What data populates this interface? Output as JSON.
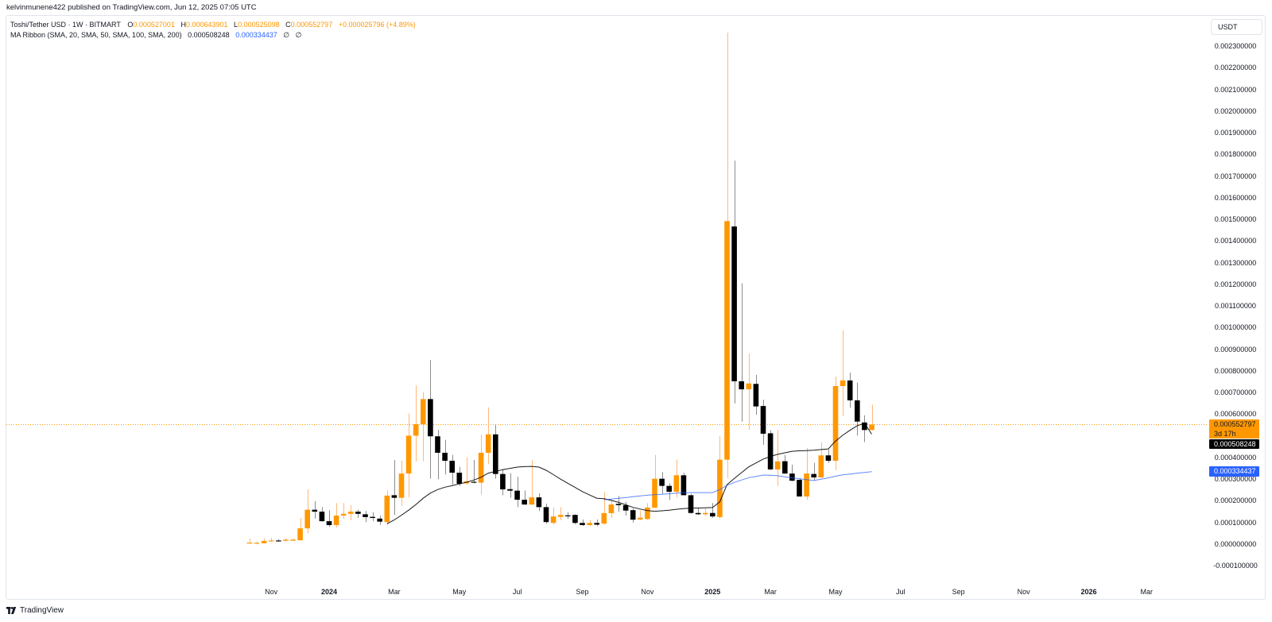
{
  "header": {
    "author": "kelvinmunene422",
    "published_text": " published on TradingView.com, Jun 12, 2025 07:05 UTC"
  },
  "legend": {
    "symbol": "Toshi/Tether USD · 1W · BITMART",
    "ohlc": [
      {
        "label": "O",
        "value": "0.000527001"
      },
      {
        "label": "H",
        "value": "0.000643901"
      },
      {
        "label": "L",
        "value": "0.000525098"
      },
      {
        "label": "C",
        "value": "0.000552797"
      }
    ],
    "change": "+0.000025796 (+4.89%)",
    "indicator": {
      "name": "MA Ribbon (SMA, 20, SMA, 50, SMA, 100, SMA, 200)",
      "values": [
        "0.000508248",
        "0.000334437",
        "∅",
        "∅"
      ]
    }
  },
  "price_scale": {
    "currency": "USDT"
  },
  "price_badges": [
    {
      "name": "last-price-badge",
      "value": "0.000552797",
      "sub": "3d 17h",
      "bg": "#ff9800",
      "fg": "#131722"
    },
    {
      "name": "sma-20-badge",
      "value": "0.000508248",
      "sub": null,
      "bg": "#000000",
      "fg": "#ffffff"
    },
    {
      "name": "sma-50-badge",
      "value": "0.000334437",
      "sub": null,
      "bg": "#2962ff",
      "fg": "#ffffff"
    }
  ],
  "colors": {
    "up_body": "#ff9800",
    "up_wick": "#ffb878",
    "down_body": "#000000",
    "down_wick": "#8c8c8c",
    "last_price_line": "#ff9800",
    "frame_border": "#e0e3eb"
  },
  "footer": {
    "brand": "TradingView"
  },
  "chart_data": {
    "type": "candlestick",
    "title": "Toshi/Tether USD · 1W · BITMART",
    "interval": "1W",
    "xlabel": "",
    "ylabel": "USDT",
    "ylim": [
      -0.00018,
      0.00244
    ],
    "grid": false,
    "legend_position": "top-left",
    "last_price": 0.000552797,
    "y_axis": {
      "ticks": [
        "0.002300000",
        "0.002200000",
        "0.002100000",
        "0.002000000",
        "0.001900000",
        "0.001800000",
        "0.001700000",
        "0.001600000",
        "0.001500000",
        "0.001400000",
        "0.001300000",
        "0.001200000",
        "0.001100000",
        "0.001000000",
        "0.000900000",
        "0.000800000",
        "0.000700000",
        "0.000600000",
        "0.000400000",
        "0.000300000",
        "0.000200000",
        "0.000100000",
        "0.000000000",
        "-0.000100000"
      ]
    },
    "x_axis": {
      "ticks": [
        {
          "label": "Nov",
          "bar": 3,
          "bold": false
        },
        {
          "label": "2024",
          "bar": 11,
          "bold": true
        },
        {
          "label": "Mar",
          "bar": 20,
          "bold": false
        },
        {
          "label": "May",
          "bar": 29,
          "bold": false
        },
        {
          "label": "Jul",
          "bar": 37,
          "bold": false
        },
        {
          "label": "Sep",
          "bar": 46,
          "bold": false
        },
        {
          "label": "Nov",
          "bar": 55,
          "bold": false
        },
        {
          "label": "2025",
          "bar": 64,
          "bold": true
        },
        {
          "label": "Mar",
          "bar": 72,
          "bold": false
        },
        {
          "label": "May",
          "bar": 81,
          "bold": false
        },
        {
          "label": "Jul",
          "bar": 90,
          "bold": false
        },
        {
          "label": "Sep",
          "bar": 98,
          "bold": false
        },
        {
          "label": "Nov",
          "bar": 107,
          "bold": false
        },
        {
          "label": "2026",
          "bar": 116,
          "bold": true
        },
        {
          "label": "Mar",
          "bar": 124,
          "bold": false
        }
      ]
    },
    "candle_fields": [
      "open",
      "high",
      "low",
      "close"
    ],
    "candles": [
      [
        4e-06,
        2.6e-05,
        3e-06,
        7e-06
      ],
      [
        4e-06,
        1.1e-05,
        3e-06,
        6e-06
      ],
      [
        4e-06,
        2.7e-05,
        3e-06,
        1.5e-05
      ],
      [
        1.3e-05,
        3e-05,
        1.1e-05,
        1.7e-05
      ],
      [
        1.7e-05,
        2.3e-05,
        1.2e-05,
        1.6e-05
      ],
      [
        1.6e-05,
        2.7e-05,
        1.2e-05,
        2.1e-05
      ],
      [
        1.6e-05,
        2.7e-05,
        1.5e-05,
        2.1e-05
      ],
      [
        1.8e-05,
        0.00012,
        1.6e-05,
        7.3e-05
      ],
      [
        7.3e-05,
        0.000253,
        5.1e-05,
        0.000159
      ],
      [
        0.000159,
        0.000199,
        0.000118,
        0.00015
      ],
      [
        0.00015,
        0.000171,
        0.000104,
        0.000106
      ],
      [
        0.000106,
        0.000157,
        8e-05,
        8.8e-05
      ],
      [
        8.8e-05,
        0.00019,
        7.7e-05,
        0.000132
      ],
      [
        0.000132,
        0.00019,
        0.000118,
        0.00014
      ],
      [
        0.00014,
        0.00018,
        0.00011,
        0.00015
      ],
      [
        0.00015,
        0.000159,
        0.000122,
        0.00014
      ],
      [
        0.000138,
        0.000153,
        0.000102,
        0.000125
      ],
      [
        0.000126,
        0.000147,
        0.000106,
        0.000121
      ],
      [
        0.000118,
        0.000132,
        8.9e-05,
        0.000104
      ],
      [
        0.000102,
        0.000248,
        9.2e-05,
        0.000224
      ],
      [
        0.000226,
        0.000389,
        0.000135,
        0.000214
      ],
      [
        0.000214,
        0.000385,
        0.000177,
        0.000326
      ],
      [
        0.000326,
        0.000603,
        0.000216,
        0.000501
      ],
      [
        0.000501,
        0.000734,
        0.000382,
        0.000554
      ],
      [
        0.000554,
        0.000701,
        0.000383,
        0.00067
      ],
      [
        0.00067,
        0.00085,
        0.000302,
        0.000498
      ],
      [
        0.000498,
        0.000528,
        0.0003,
        0.000422
      ],
      [
        0.000422,
        0.000481,
        0.000322,
        0.000385
      ],
      [
        0.000385,
        0.000412,
        0.000275,
        0.00033
      ],
      [
        0.00033,
        0.000357,
        0.000269,
        0.000279
      ],
      [
        0.000281,
        0.000401,
        0.000275,
        0.00029
      ],
      [
        0.000288,
        0.000389,
        0.000281,
        0.000284
      ],
      [
        0.000284,
        0.000505,
        0.000229,
        0.000422
      ],
      [
        0.000422,
        0.000632,
        0.000369,
        0.000507
      ],
      [
        0.000507,
        0.00055,
        0.000302,
        0.000324
      ],
      [
        0.000324,
        0.000346,
        0.000226,
        0.000253
      ],
      [
        0.000254,
        0.000328,
        0.000214,
        0.000247
      ],
      [
        0.000247,
        0.000312,
        0.000171,
        0.000205
      ],
      [
        0.000205,
        0.000248,
        0.000181,
        0.000183
      ],
      [
        0.000183,
        0.000389,
        0.00018,
        0.000216
      ],
      [
        0.000216,
        0.000235,
        0.000153,
        0.000171
      ],
      [
        0.000171,
        0.000187,
        9.4e-05,
        0.000102
      ],
      [
        9.8e-05,
        0.000169,
        9.2e-05,
        0.000128
      ],
      [
        0.000126,
        0.000171,
        0.00011,
        0.000135
      ],
      [
        0.000133,
        0.000147,
        0.000118,
        0.000131
      ],
      [
        0.000135,
        0.000138,
        9.2e-05,
        9.8e-05
      ],
      [
        9.8e-05,
        0.000114,
        8.4e-05,
        8.8e-05
      ],
      [
        8.8e-05,
        0.000112,
        8.4e-05,
        9.8e-05
      ],
      [
        9.8e-05,
        0.000114,
        8.4e-05,
        9e-05
      ],
      [
        9.5e-05,
        0.000241,
        9e-05,
        0.000143
      ],
      [
        0.000143,
        0.000204,
        0.000122,
        0.000183
      ],
      [
        0.000186,
        0.000223,
        0.000149,
        0.00018
      ],
      [
        0.00018,
        0.000196,
        0.000131,
        0.000155
      ],
      [
        0.000157,
        0.000165,
        0.0001,
        0.000113
      ],
      [
        0.000114,
        0.000155,
        0.00011,
        0.000122
      ],
      [
        0.000116,
        0.00019,
        0.000113,
        0.000169
      ],
      [
        0.000168,
        0.000412,
        0.000166,
        0.000302
      ],
      [
        0.000302,
        0.000333,
        0.000232,
        0.000269
      ],
      [
        0.000269,
        0.000281,
        0.000204,
        0.000242
      ],
      [
        0.000242,
        0.000391,
        0.000214,
        0.000318
      ],
      [
        0.000318,
        0.00033,
        0.000226,
        0.000226
      ],
      [
        0.000226,
        0.000232,
        0.00014,
        0.000144
      ],
      [
        0.000144,
        0.000168,
        0.000135,
        0.000138
      ],
      [
        0.000138,
        0.000165,
        0.00013,
        0.000144
      ],
      [
        0.000144,
        0.00019,
        0.000122,
        0.000128
      ],
      [
        0.000125,
        0.000499,
        0.000117,
        0.00039
      ],
      [
        0.00039,
        0.002362,
        0.000306,
        0.001492
      ],
      [
        0.001467,
        0.001771,
        0.00065,
        0.000752
      ],
      [
        0.000752,
        0.001204,
        0.000566,
        0.000715
      ],
      [
        0.000715,
        0.00088,
        0.000528,
        0.000742
      ],
      [
        0.00074,
        0.000782,
        0.000597,
        0.000636
      ],
      [
        0.000638,
        0.000667,
        0.000459,
        0.00051
      ],
      [
        0.000512,
        0.000526,
        0.000342,
        0.000345
      ],
      [
        0.000345,
        0.000526,
        0.000269,
        0.000382
      ],
      [
        0.000383,
        0.000412,
        0.000324,
        0.000326
      ],
      [
        0.000326,
        0.000367,
        0.00029,
        0.000293
      ],
      [
        0.000297,
        0.000306,
        0.00022,
        0.00022
      ],
      [
        0.00022,
        0.000444,
        0.000204,
        0.000326
      ],
      [
        0.000324,
        0.000375,
        0.000293,
        0.000308
      ],
      [
        0.000308,
        0.000471,
        0.000306,
        0.00041
      ],
      [
        0.00041,
        0.000437,
        0.000375,
        0.000385
      ],
      [
        0.000385,
        0.000774,
        0.000342,
        0.00073
      ],
      [
        0.00073,
        0.000987,
        0.000593,
        0.000756
      ],
      [
        0.000756,
        0.000792,
        0.00063,
        0.000664
      ],
      [
        0.000664,
        0.000746,
        0.000501,
        0.000566
      ],
      [
        0.000562,
        0.000595,
        0.000471,
        0.000527
      ],
      [
        0.000527001,
        0.000643901,
        0.000525098,
        0.000552797
      ]
    ],
    "series": [
      {
        "name": "SMA 20",
        "color": "#000000",
        "start_bar": 19,
        "values": [
          9.4e-05,
          0.000112,
          0.000134,
          0.000157,
          0.000183,
          0.000212,
          0.000236,
          0.000252,
          0.000263,
          0.00027,
          0.000278,
          0.000286,
          0.000296,
          0.000309,
          0.000328,
          0.000336,
          0.000344,
          0.00035,
          0.000356,
          0.000358,
          0.000359,
          0.000356,
          0.000341,
          0.000321,
          0.0003,
          0.000281,
          0.000262,
          0.000243,
          0.000227,
          0.000212,
          0.00021,
          0.000202,
          0.000193,
          0.000182,
          0.00017,
          0.000162,
          0.000155,
          0.000152,
          0.000154,
          0.000157,
          0.000161,
          0.000164,
          0.000166,
          0.000167,
          0.000168,
          0.000169,
          0.000195,
          0.000275,
          0.000303,
          0.00033,
          0.000357,
          0.000375,
          0.000393,
          0.000405,
          0.000415,
          0.000422,
          0.000429,
          0.000431,
          0.000432,
          0.000434,
          0.000437,
          0.00044,
          0.000476,
          0.000503,
          0.000526,
          0.000547,
          0.000558,
          0.000508248
        ]
      },
      {
        "name": "SMA 50",
        "color": "#2962ff",
        "start_bar": 49,
        "values": [
          0.000205,
          0.000208,
          0.000212,
          0.000215,
          0.000219,
          0.000223,
          0.000226,
          0.000229,
          0.00023,
          0.000233,
          0.000235,
          0.000238,
          0.000238,
          0.000238,
          0.000238,
          0.000238,
          0.000252,
          0.000271,
          0.000285,
          0.000296,
          0.000307,
          0.000313,
          0.000319,
          0.000318,
          0.000316,
          0.000311,
          0.000306,
          0.000302,
          0.000298,
          0.000294,
          0.0003,
          0.000306,
          0.000314,
          0.00032,
          0.000324,
          0.000328,
          0.000331,
          0.000334437
        ]
      }
    ]
  }
}
